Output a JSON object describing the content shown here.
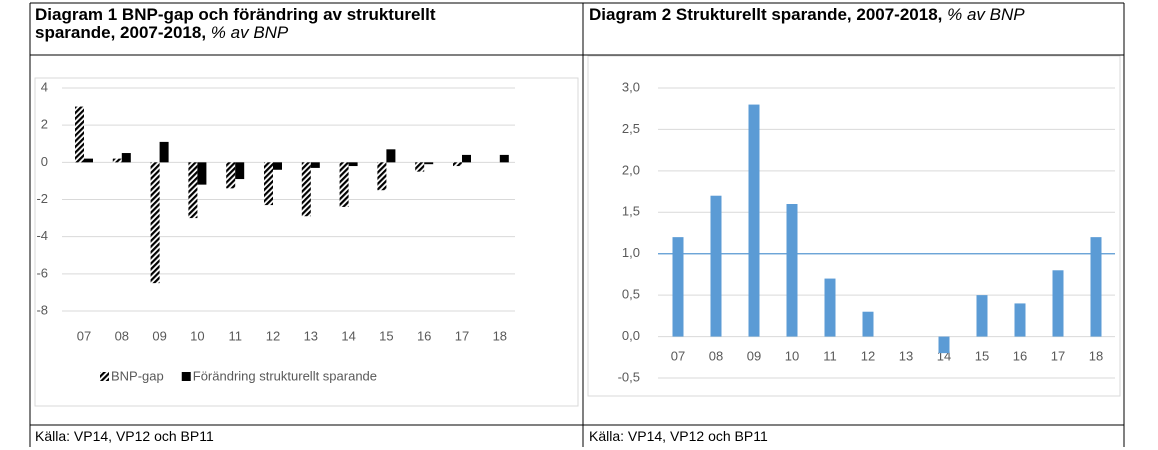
{
  "chart_data": [
    {
      "type": "bar",
      "title": "Diagram 1 BNP-gap och förändring av strukturellt sparande, 2007-2018,",
      "subtitle": "% av BNP",
      "source": "Källa: VP14, VP12 och BP11",
      "categories": [
        "07",
        "08",
        "09",
        "10",
        "11",
        "12",
        "13",
        "14",
        "15",
        "16",
        "17",
        "18"
      ],
      "series": [
        {
          "name": "BNP-gap",
          "color": "#000000",
          "hatch": true,
          "values": [
            3.0,
            0.2,
            -6.5,
            -3.0,
            -1.4,
            -2.3,
            -2.9,
            -2.4,
            -1.5,
            -0.5,
            -0.2,
            0.0
          ]
        },
        {
          "name": "Förändring strukturellt sparande",
          "color": "#000000",
          "hatch": false,
          "values": [
            0.2,
            0.5,
            1.1,
            -1.2,
            -0.9,
            -0.4,
            -0.3,
            -0.2,
            0.7,
            -0.1,
            0.4,
            0.4
          ]
        }
      ],
      "ylim": [
        -8,
        4
      ],
      "yticks": [
        -8,
        -6,
        -4,
        -2,
        0,
        2,
        4
      ],
      "grid": true,
      "legend": "bottom"
    },
    {
      "type": "bar",
      "title": "Diagram 2 Strukturellt sparande, 2007-2018,",
      "subtitle": "% av BNP",
      "source": "Källa: VP14, VP12 och BP11",
      "categories": [
        "07",
        "08",
        "09",
        "10",
        "11",
        "12",
        "13",
        "14",
        "15",
        "16",
        "17",
        "18"
      ],
      "series": [
        {
          "color": "#5b9bd5",
          "values": [
            1.2,
            1.7,
            2.8,
            1.6,
            0.7,
            0.3,
            0.0,
            -0.2,
            0.5,
            0.4,
            0.8,
            1.2
          ]
        }
      ],
      "ylim": [
        -0.5,
        3.0
      ],
      "yticks": [
        {
          "value": -0.5,
          "label": "-0,5"
        },
        {
          "value": 0,
          "label": "0,0"
        },
        {
          "value": 0.5,
          "label": "0,5"
        },
        {
          "value": 1,
          "label": "1,0"
        },
        {
          "value": 1.5,
          "label": "1,5"
        },
        {
          "value": 2,
          "label": "2,0"
        },
        {
          "value": 2.5,
          "label": "2,5"
        },
        {
          "value": 3,
          "label": "3,0"
        }
      ],
      "grid": true,
      "reference_line": 1
    }
  ]
}
